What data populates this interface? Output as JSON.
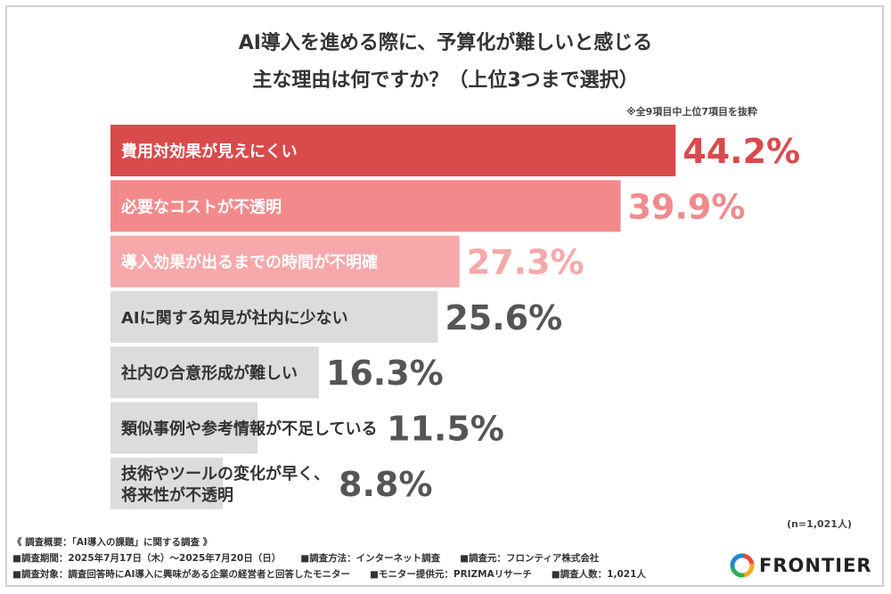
{
  "title": {
    "line1": "AI導入を進める際に、予算化が難しいと感じる",
    "line2": "主な理由は何ですか？（上位3つまで選択）"
  },
  "note_top": "※全9項目中上位7項目を抜粋",
  "n_note": "(n=1,021人)",
  "chart_data": {
    "type": "bar",
    "orientation": "horizontal",
    "unit": "%",
    "categories": [
      [
        "費用対効果が見えにくい"
      ],
      [
        "必要なコストが不透明"
      ],
      [
        "導入効果が出るまでの時間が不明確"
      ],
      [
        "AIに関する知見が社内に少ない"
      ],
      [
        "社内の合意形成が難しい"
      ],
      [
        "類似事例や参考情報が不足している"
      ],
      [
        "技術やツールの変化が早く、",
        "将来性が不透明"
      ]
    ],
    "values": [
      44.2,
      39.9,
      27.3,
      25.6,
      16.3,
      11.5,
      8.8
    ],
    "value_labels": [
      "44.2%",
      "39.9%",
      "27.3%",
      "25.6%",
      "16.3%",
      "11.5%",
      "8.8%"
    ],
    "bar_colors": [
      "#d94a4c",
      "#f28a8c",
      "#f7a8aa",
      "#dcdcdc",
      "#dcdcdc",
      "#dcdcdc",
      "#dcdcdc"
    ],
    "label_colors": [
      "#ffffff",
      "#ffffff",
      "#ffffff",
      "#333333",
      "#333333",
      "#333333",
      "#333333"
    ],
    "value_colors": [
      "#d94a4c",
      "#f28a8c",
      "#f7a8aa",
      "#555555",
      "#555555",
      "#555555",
      "#555555"
    ]
  },
  "footer": {
    "line1": "《 調査概要：「AI導入の課題」に関する調査 》",
    "period": "■調査期間：2025年7月17日（木）～2025年7月20日（日）",
    "method": "■調査方法：インターネット調査",
    "source": "■調査元：フロンティア株式会社",
    "target": "■調査対象：調査回答時にAI導入に興味がある企業の経営者と回答したモニター",
    "provider": "■モニター提供元：PRIZMAリサーチ",
    "count": "■調査人数：1,021人"
  },
  "logo": {
    "text": "FRONTIER",
    "colors": [
      "#e94b3c",
      "#f5a623",
      "#2eaf5d",
      "#1e88c9"
    ]
  }
}
